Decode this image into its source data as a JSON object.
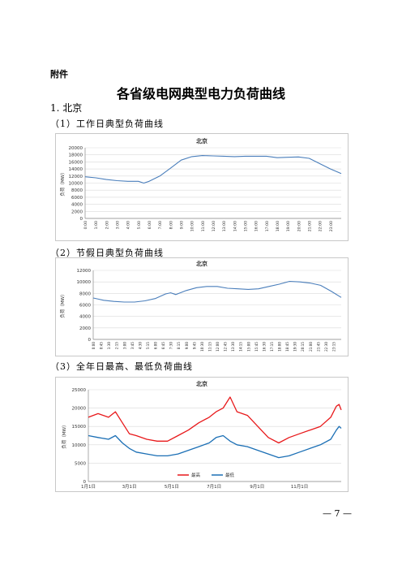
{
  "document": {
    "annex_label": "附件",
    "title": "各省级电网典型电力负荷曲线",
    "section": "1. 北京",
    "subsections": [
      "（1）工作日典型负荷曲线",
      "（2）节假日典型负荷曲线",
      "（3）全年日最高、最低负荷曲线"
    ],
    "page_number": "— 7 —"
  },
  "chart_data": [
    {
      "type": "line",
      "title": "北京",
      "ylabel": "负荷（MW）",
      "ylim": [
        0,
        20000
      ],
      "yticks": [
        "20000",
        "18000",
        "16000",
        "14000",
        "12000",
        "10000",
        "8000",
        "6000",
        "4000",
        "2000",
        "0"
      ],
      "xticks": [
        "0:00",
        "1:00",
        "2:00",
        "3:00",
        "4:00",
        "5:00",
        "6:00",
        "7:00",
        "8:00",
        "9:00",
        "10:00",
        "11:00",
        "12:00",
        "13:00",
        "14:00",
        "15:00",
        "16:00",
        "17:00",
        "18:00",
        "19:00",
        "20:00",
        "21:00",
        "22:00",
        "23:00"
      ],
      "color": "#4a7ebb",
      "x_hours": [
        0,
        1,
        2,
        3,
        4,
        5,
        5.5,
        6,
        7,
        8,
        9,
        10,
        11,
        12,
        13,
        14,
        15,
        16,
        17,
        18,
        19,
        20,
        21,
        22,
        23,
        24
      ],
      "values": [
        11800,
        11500,
        11000,
        10700,
        10500,
        10500,
        10000,
        10500,
        12000,
        14200,
        16500,
        17500,
        17800,
        17700,
        17600,
        17500,
        17600,
        17600,
        17600,
        17200,
        17300,
        17400,
        17000,
        15500,
        14000,
        12700
      ]
    },
    {
      "type": "line",
      "title": "北京",
      "ylabel": "负荷（MW）",
      "ylim": [
        0,
        12000
      ],
      "yticks": [
        "12000",
        "10000",
        "8000",
        "6000",
        "4000",
        "2000",
        "0"
      ],
      "xticks": [
        "0:00",
        "0:45",
        "1:30",
        "2:15",
        "3:00",
        "3:45",
        "4:30",
        "5:15",
        "6:00",
        "6:45",
        "7:30",
        "8:15",
        "9:00",
        "9:45",
        "10:30",
        "11:15",
        "12:00",
        "12:45",
        "13:30",
        "14:15",
        "15:00",
        "15:45",
        "16:30",
        "17:15",
        "18:00",
        "18:45",
        "19:30",
        "20:15",
        "21:00",
        "21:45",
        "22:30",
        "23:15"
      ],
      "color": "#4a7ebb",
      "x_hours": [
        0,
        0.5,
        1,
        2,
        3,
        4,
        5,
        6,
        7,
        7.5,
        8,
        9,
        10,
        11,
        12,
        13,
        14,
        15,
        16,
        17,
        18,
        19,
        20,
        21,
        22,
        23,
        24
      ],
      "values": [
        7200,
        7000,
        6800,
        6600,
        6500,
        6500,
        6700,
        7100,
        7900,
        8100,
        7800,
        8500,
        9000,
        9200,
        9200,
        8900,
        8800,
        8700,
        8800,
        9200,
        9600,
        10100,
        10000,
        9800,
        9400,
        8400,
        7300
      ]
    },
    {
      "type": "line",
      "title": "北京",
      "ylabel": "负荷（MW）",
      "ylim": [
        0,
        25000
      ],
      "yticks": [
        "25000",
        "20000",
        "15000",
        "10000",
        "5000",
        "0"
      ],
      "xticks": [
        "1月1日",
        "3月1日",
        "5月1日",
        "7月1日",
        "9月1日",
        "11月1日"
      ],
      "x_days": [
        1,
        60,
        121,
        182,
        244,
        305
      ],
      "series": [
        {
          "name": "最高",
          "color": "#e8191b",
          "days": [
            1,
            15,
            30,
            40,
            50,
            60,
            70,
            85,
            100,
            115,
            130,
            145,
            160,
            175,
            185,
            195,
            205,
            215,
            230,
            245,
            260,
            275,
            290,
            305,
            320,
            335,
            350,
            358,
            362,
            365
          ],
          "values": [
            17500,
            18500,
            17500,
            19000,
            16000,
            13000,
            12500,
            11500,
            11000,
            11000,
            12500,
            14000,
            16000,
            17500,
            19000,
            20000,
            23000,
            19000,
            18000,
            15000,
            12000,
            10500,
            12000,
            13000,
            14000,
            15000,
            17500,
            20500,
            21000,
            19500
          ]
        },
        {
          "name": "最低",
          "color": "#1b6fb5",
          "days": [
            1,
            15,
            30,
            40,
            50,
            60,
            70,
            85,
            100,
            115,
            130,
            145,
            160,
            175,
            185,
            195,
            205,
            215,
            230,
            245,
            260,
            275,
            290,
            305,
            320,
            335,
            350,
            358,
            362,
            365
          ],
          "values": [
            12500,
            12000,
            11500,
            12500,
            10500,
            9000,
            8000,
            7500,
            7000,
            7000,
            7500,
            8500,
            9500,
            10500,
            12000,
            12500,
            11000,
            10000,
            9500,
            8500,
            7500,
            6500,
            7000,
            8000,
            9000,
            10000,
            11500,
            14000,
            15000,
            14500
          ]
        }
      ]
    }
  ]
}
